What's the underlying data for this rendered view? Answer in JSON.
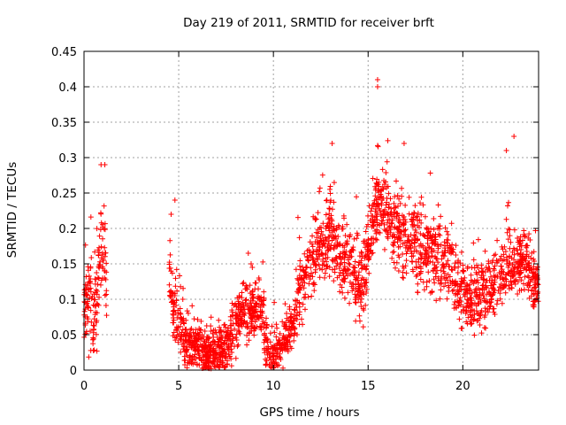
{
  "chart_data": {
    "type": "scatter",
    "title": "Day 219 of 2011, SRMTID for receiver brft",
    "xlabel": "GPS time / hours",
    "ylabel": "SRMTID / TECUs",
    "xlim": [
      0,
      24
    ],
    "ylim": [
      0,
      0.45
    ],
    "x_ticks": [
      0,
      5,
      10,
      15,
      20
    ],
    "x_tick_labels": [
      "0",
      "5",
      "10",
      "15",
      "20"
    ],
    "y_ticks": [
      0,
      0.05,
      0.1,
      0.15,
      0.2,
      0.25,
      0.3,
      0.35,
      0.4,
      0.45
    ],
    "y_tick_labels": [
      "0",
      "0.05",
      "0.1",
      "0.15",
      "0.2",
      "0.25",
      "0.3",
      "0.35",
      "0.4",
      "0.45"
    ],
    "grid": true,
    "marker": "+",
    "color": "#ff0000",
    "series": [
      {
        "name": "SRMTID",
        "segments": [
          {
            "start": 0.0,
            "end": 1.2,
            "n": 150,
            "trend": [
              [
                0,
                0.08
              ],
              [
                0.2,
                0.1
              ],
              [
                0.5,
                0.07
              ],
              [
                0.8,
                0.14
              ],
              [
                1.05,
                0.2
              ],
              [
                1.2,
                0.12
              ]
            ],
            "spread": 0.06
          },
          {
            "start": 4.5,
            "end": 5.3,
            "n": 90,
            "trend": [
              [
                4.5,
                0.14
              ],
              [
                4.7,
                0.09
              ],
              [
                5.0,
                0.07
              ],
              [
                5.3,
                0.05
              ]
            ],
            "spread": 0.045
          },
          {
            "start": 5.3,
            "end": 7.8,
            "n": 380,
            "trend": [
              [
                5.3,
                0.04
              ],
              [
                6.0,
                0.028
              ],
              [
                7.0,
                0.025
              ],
              [
                7.8,
                0.04
              ]
            ],
            "spread": 0.03
          },
          {
            "start": 7.8,
            "end": 9.5,
            "n": 220,
            "trend": [
              [
                7.8,
                0.05
              ],
              [
                8.3,
                0.08
              ],
              [
                9.0,
                0.085
              ],
              [
                9.5,
                0.09
              ]
            ],
            "spread": 0.035
          },
          {
            "start": 9.5,
            "end": 11.2,
            "n": 200,
            "trend": [
              [
                9.5,
                0.04
              ],
              [
                10.0,
                0.02
              ],
              [
                10.5,
                0.04
              ],
              [
                11.2,
                0.07
              ]
            ],
            "spread": 0.03
          },
          {
            "start": 11.2,
            "end": 14.8,
            "n": 420,
            "trend": [
              [
                11.2,
                0.09
              ],
              [
                12.0,
                0.15
              ],
              [
                13.0,
                0.2
              ],
              [
                13.5,
                0.16
              ],
              [
                14.8,
                0.12
              ]
            ],
            "spread": 0.05
          },
          {
            "start": 14.8,
            "end": 19.5,
            "n": 560,
            "trend": [
              [
                14.8,
                0.14
              ],
              [
                15.5,
                0.24
              ],
              [
                16.5,
                0.2
              ],
              [
                17.5,
                0.18
              ],
              [
                18.5,
                0.16
              ],
              [
                19.5,
                0.14
              ]
            ],
            "spread": 0.05
          },
          {
            "start": 19.5,
            "end": 24.0,
            "n": 520,
            "trend": [
              [
                19.5,
                0.12
              ],
              [
                20.5,
                0.1
              ],
              [
                21.5,
                0.12
              ],
              [
                22.5,
                0.15
              ],
              [
                23.3,
                0.16
              ],
              [
                24.0,
                0.1
              ]
            ],
            "spread": 0.045
          }
        ],
        "notable_points": [
          {
            "x": 15.5,
            "y": 0.41
          },
          {
            "x": 15.5,
            "y": 0.4
          },
          {
            "x": 22.7,
            "y": 0.33
          },
          {
            "x": 13.1,
            "y": 0.32
          },
          {
            "x": 16.9,
            "y": 0.32
          },
          {
            "x": 22.3,
            "y": 0.31
          },
          {
            "x": 0.9,
            "y": 0.29
          },
          {
            "x": 1.1,
            "y": 0.29
          },
          {
            "x": 4.8,
            "y": 0.24
          },
          {
            "x": 4.6,
            "y": 0.22
          }
        ]
      }
    ]
  }
}
